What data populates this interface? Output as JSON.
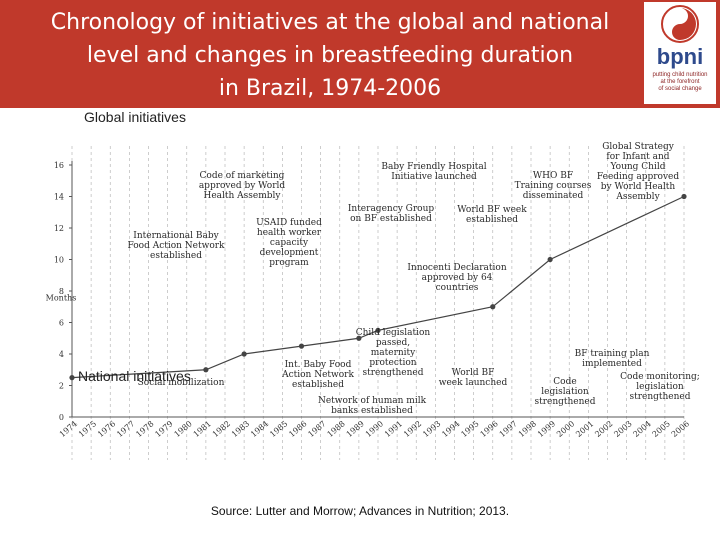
{
  "header": {
    "title_lines": [
      "Chronology of initiatives at the global and national",
      "level and changes in breastfeeding duration",
      "in Brazil, 1974-2006"
    ],
    "logo_text": "bpni",
    "logo_tagline": [
      "putting child nutrition",
      "at the forefront",
      "of social change"
    ],
    "bg_color": "#c0392b"
  },
  "source": "Source: Lutter and Morrow; Advances in Nutrition; 2013.",
  "chart_data": {
    "type": "line",
    "title": "Chronology of initiatives at the global and national level and changes in breastfeeding duration in Brazil, 1974-2006",
    "ylabel": "Months",
    "ylim": [
      0,
      16
    ],
    "yticks": [
      0,
      2,
      4,
      6,
      8,
      10,
      12,
      14,
      16
    ],
    "xlim": [
      1974,
      2006
    ],
    "x_labels": [
      "1974",
      "1975",
      "1976",
      "1977",
      "1978",
      "1979",
      "1980",
      "1981",
      "1982",
      "1983",
      "1984",
      "1985",
      "1986",
      "1987",
      "1988",
      "1989",
      "1990",
      "1991",
      "1992",
      "1993",
      "1994",
      "1995",
      "1996",
      "1997",
      "1998",
      "1999",
      "2000",
      "2001",
      "2002",
      "2003",
      "2004",
      "2005",
      "2006"
    ],
    "series": [
      {
        "name": "Breastfeeding duration",
        "x": [
          1974,
          1981,
          1983,
          1986,
          1989,
          1990,
          1996,
          1999,
          2006
        ],
        "y": [
          2.5,
          3.0,
          4.0,
          4.5,
          5.0,
          5.5,
          7.0,
          10.0,
          14.0
        ]
      }
    ],
    "section_labels": {
      "global": "Global initiatives",
      "national": "National initiatives"
    },
    "line_color": "#444444",
    "global_annotations": [
      {
        "text": [
          "Code of marketing",
          "approved by World",
          "Health Assembly"
        ],
        "year": 1981
      },
      {
        "text": [
          "International Baby",
          "Food Action Network",
          "established"
        ],
        "year": 1979
      },
      {
        "text": [
          "USAID funded",
          "health worker",
          "capacity",
          "development",
          "program"
        ],
        "year": 1986
      },
      {
        "text": [
          "Baby Friendly Hospital",
          "Initiative launched"
        ],
        "year": 1991
      },
      {
        "text": [
          "Interagency Group",
          "on BF established"
        ],
        "year": 1991
      },
      {
        "text": [
          "World BF week",
          "established"
        ],
        "year": 1992
      },
      {
        "text": [
          "Innocenti Declaration",
          "approved by 64",
          "countries"
        ],
        "year": 1990
      },
      {
        "text": [
          "WHO BF",
          "Training courses",
          "disseminated"
        ],
        "year": 1997
      },
      {
        "text": [
          "Global Strategy",
          "for Infant and",
          "Young Child",
          "Feeding approved",
          "by World Health",
          "Assembly"
        ],
        "year": 2002
      }
    ],
    "national_annotations": [
      {
        "text": [
          "Social mobilization"
        ],
        "year": 1981
      },
      {
        "text": [
          "Int. Baby Food",
          "Action Network",
          "established"
        ],
        "year": 1983
      },
      {
        "text": [
          "Child legislation",
          "passed,",
          "maternity",
          "protection",
          "strengthened"
        ],
        "year": 1988
      },
      {
        "text": [
          "Network of human milk",
          "banks established"
        ],
        "year": 1988
      },
      {
        "text": [
          "World BF",
          "week launched"
        ],
        "year": 1992
      },
      {
        "text": [
          "Code",
          "legislation",
          "strengthened"
        ],
        "year": 1998
      },
      {
        "text": [
          "BF training plan",
          "implemented"
        ],
        "year": 2001
      },
      {
        "text": [
          "Code monitoring;",
          "legislation",
          "strengthened"
        ],
        "year": 2004
      }
    ]
  }
}
